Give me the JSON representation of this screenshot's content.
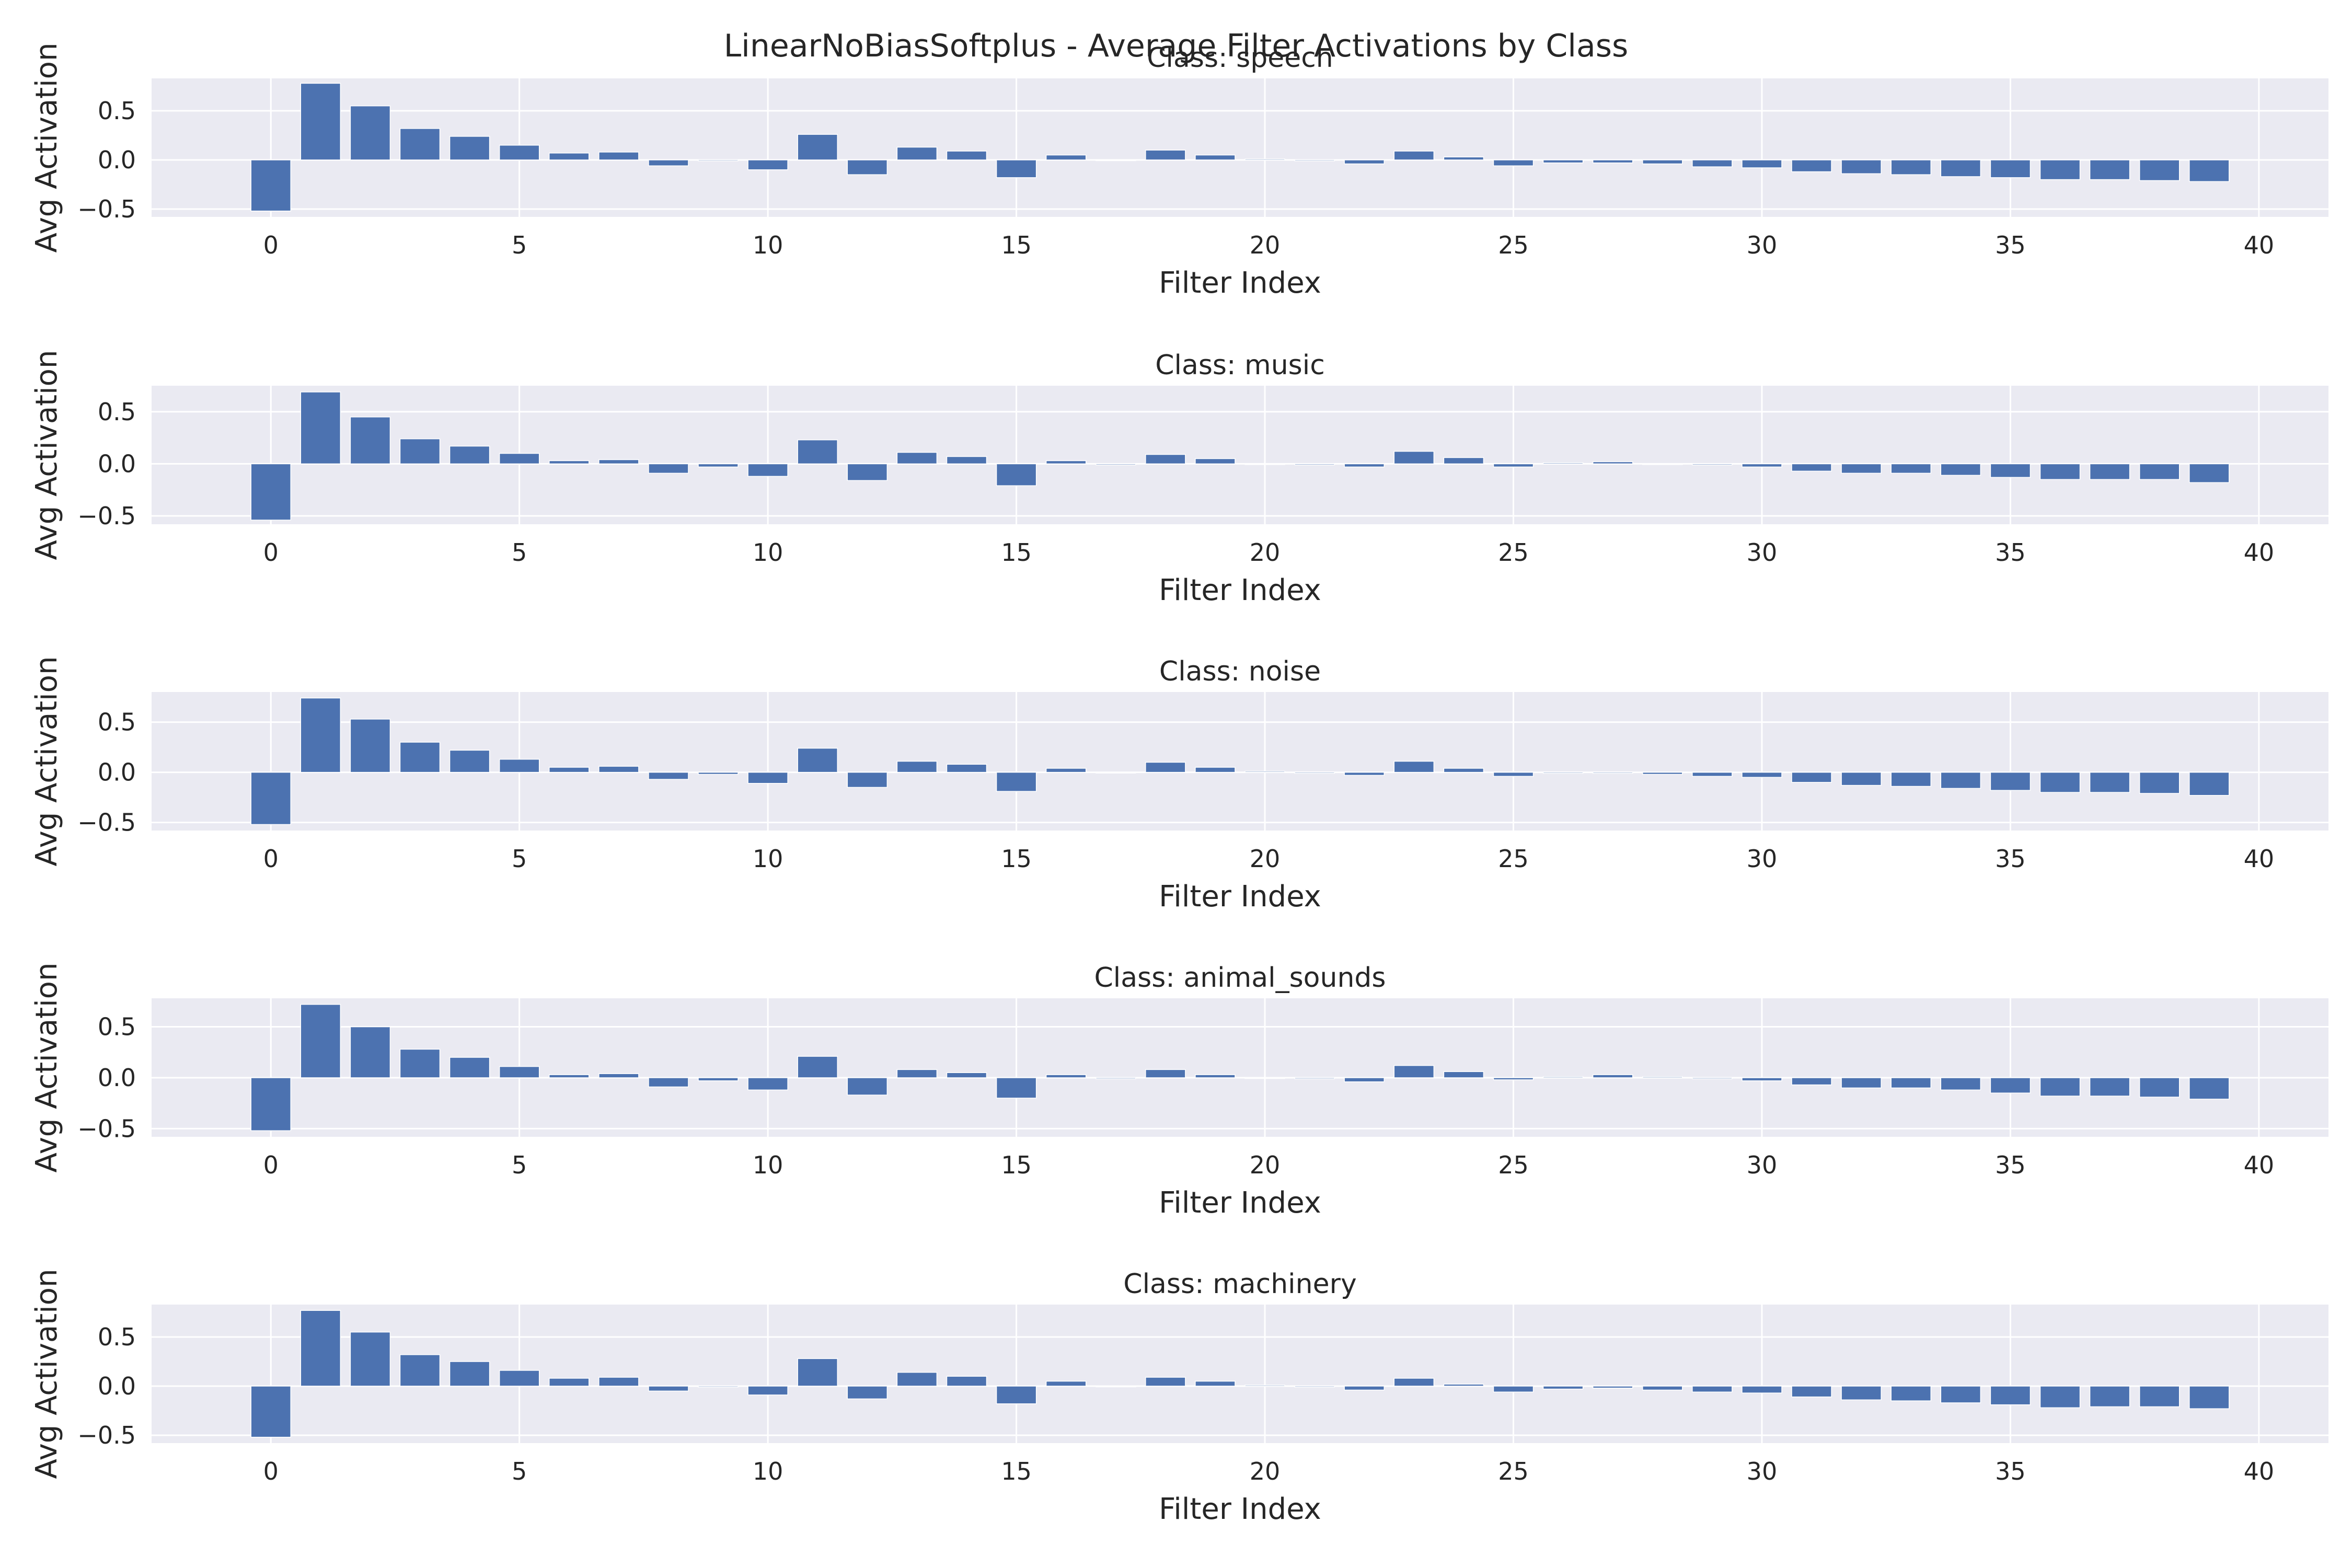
{
  "figure_title": "LinearNoBiasSoftplus - Average Filter Activations by Class",
  "colors": {
    "bar": "#4c72b0",
    "panel_bg": "#eaeaf2",
    "grid": "#ffffff",
    "text": "#262626"
  },
  "chart_data": [
    {
      "type": "bar",
      "title": "Class: speech",
      "xlabel": "Filter Index",
      "ylabel": "Avg Activation",
      "xlim": [
        -2.4,
        41.4
      ],
      "ylim": [
        -0.58,
        0.83
      ],
      "xticks": [
        0,
        5,
        10,
        15,
        20,
        25,
        30,
        35,
        40
      ],
      "yticks": [
        -0.5,
        0.0,
        0.5
      ],
      "xtick_labels": [
        "0",
        "5",
        "10",
        "15",
        "20",
        "25",
        "30",
        "35",
        "40"
      ],
      "ytick_labels": [
        "−0.5",
        "0.0",
        "0.5"
      ],
      "grid": true,
      "x": [
        0,
        1,
        2,
        3,
        4,
        5,
        6,
        7,
        8,
        9,
        10,
        11,
        12,
        13,
        14,
        15,
        16,
        17,
        18,
        19,
        20,
        21,
        22,
        23,
        24,
        25,
        26,
        27,
        28,
        29,
        30,
        31,
        32,
        33,
        34,
        35,
        36,
        37,
        38,
        39
      ],
      "values": [
        -0.52,
        0.78,
        0.55,
        0.32,
        0.24,
        0.15,
        0.07,
        0.08,
        -0.06,
        -0.01,
        -0.1,
        0.26,
        -0.15,
        0.13,
        0.09,
        -0.18,
        0.05,
        0.0,
        0.1,
        0.05,
        0.01,
        -0.01,
        -0.04,
        0.09,
        0.03,
        -0.06,
        -0.03,
        -0.03,
        -0.04,
        -0.07,
        -0.08,
        -0.12,
        -0.14,
        -0.15,
        -0.17,
        -0.18,
        -0.2,
        -0.2,
        -0.21,
        -0.22
      ]
    },
    {
      "type": "bar",
      "title": "Class: music",
      "xlabel": "Filter Index",
      "ylabel": "Avg Activation",
      "xlim": [
        -2.4,
        41.4
      ],
      "ylim": [
        -0.58,
        0.75
      ],
      "xticks": [
        0,
        5,
        10,
        15,
        20,
        25,
        30,
        35,
        40
      ],
      "yticks": [
        -0.5,
        0.0,
        0.5
      ],
      "xtick_labels": [
        "0",
        "5",
        "10",
        "15",
        "20",
        "25",
        "30",
        "35",
        "40"
      ],
      "ytick_labels": [
        "−0.5",
        "0.0",
        "0.5"
      ],
      "grid": true,
      "x": [
        0,
        1,
        2,
        3,
        4,
        5,
        6,
        7,
        8,
        9,
        10,
        11,
        12,
        13,
        14,
        15,
        16,
        17,
        18,
        19,
        20,
        21,
        22,
        23,
        24,
        25,
        26,
        27,
        28,
        29,
        30,
        31,
        32,
        33,
        34,
        35,
        36,
        37,
        38,
        39
      ],
      "values": [
        -0.54,
        0.69,
        0.45,
        0.24,
        0.17,
        0.1,
        0.03,
        0.04,
        -0.09,
        -0.03,
        -0.12,
        0.23,
        -0.16,
        0.11,
        0.07,
        -0.21,
        0.03,
        -0.01,
        0.09,
        0.05,
        0.0,
        -0.01,
        -0.03,
        0.12,
        0.06,
        -0.03,
        0.01,
        0.02,
        0.0,
        -0.01,
        -0.03,
        -0.07,
        -0.09,
        -0.09,
        -0.11,
        -0.13,
        -0.15,
        -0.15,
        -0.15,
        -0.18
      ]
    },
    {
      "type": "bar",
      "title": "Class: noise",
      "xlabel": "Filter Index",
      "ylabel": "Avg Activation",
      "xlim": [
        -2.4,
        41.4
      ],
      "ylim": [
        -0.58,
        0.8
      ],
      "xticks": [
        0,
        5,
        10,
        15,
        20,
        25,
        30,
        35,
        40
      ],
      "yticks": [
        -0.5,
        0.0,
        0.5
      ],
      "xtick_labels": [
        "0",
        "5",
        "10",
        "15",
        "20",
        "25",
        "30",
        "35",
        "40"
      ],
      "ytick_labels": [
        "−0.5",
        "0.0",
        "0.5"
      ],
      "grid": true,
      "x": [
        0,
        1,
        2,
        3,
        4,
        5,
        6,
        7,
        8,
        9,
        10,
        11,
        12,
        13,
        14,
        15,
        16,
        17,
        18,
        19,
        20,
        21,
        22,
        23,
        24,
        25,
        26,
        27,
        28,
        29,
        30,
        31,
        32,
        33,
        34,
        35,
        36,
        37,
        38,
        39
      ],
      "values": [
        -0.52,
        0.74,
        0.53,
        0.3,
        0.22,
        0.13,
        0.05,
        0.06,
        -0.07,
        -0.02,
        -0.11,
        0.24,
        -0.15,
        0.11,
        0.08,
        -0.19,
        0.04,
        0.0,
        0.1,
        0.05,
        0.01,
        -0.01,
        -0.03,
        0.11,
        0.04,
        -0.04,
        -0.01,
        -0.01,
        -0.02,
        -0.04,
        -0.05,
        -0.1,
        -0.13,
        -0.14,
        -0.16,
        -0.18,
        -0.2,
        -0.2,
        -0.21,
        -0.23
      ]
    },
    {
      "type": "bar",
      "title": "Class: animal_sounds",
      "xlabel": "Filter Index",
      "ylabel": "Avg Activation",
      "xlim": [
        -2.4,
        41.4
      ],
      "ylim": [
        -0.58,
        0.78
      ],
      "xticks": [
        0,
        5,
        10,
        15,
        20,
        25,
        30,
        35,
        40
      ],
      "yticks": [
        -0.5,
        0.0,
        0.5
      ],
      "xtick_labels": [
        "0",
        "5",
        "10",
        "15",
        "20",
        "25",
        "30",
        "35",
        "40"
      ],
      "ytick_labels": [
        "−0.5",
        "0.0",
        "0.5"
      ],
      "grid": true,
      "x": [
        0,
        1,
        2,
        3,
        4,
        5,
        6,
        7,
        8,
        9,
        10,
        11,
        12,
        13,
        14,
        15,
        16,
        17,
        18,
        19,
        20,
        21,
        22,
        23,
        24,
        25,
        26,
        27,
        28,
        29,
        30,
        31,
        32,
        33,
        34,
        35,
        36,
        37,
        38,
        39
      ],
      "values": [
        -0.52,
        0.72,
        0.5,
        0.28,
        0.2,
        0.11,
        0.03,
        0.04,
        -0.09,
        -0.03,
        -0.12,
        0.21,
        -0.17,
        0.08,
        0.05,
        -0.2,
        0.03,
        -0.01,
        0.08,
        0.03,
        0.0,
        -0.01,
        -0.04,
        0.12,
        0.06,
        -0.02,
        0.01,
        0.03,
        0.01,
        -0.01,
        -0.03,
        -0.07,
        -0.1,
        -0.1,
        -0.12,
        -0.15,
        -0.18,
        -0.18,
        -0.19,
        -0.21
      ]
    },
    {
      "type": "bar",
      "title": "Class: machinery",
      "xlabel": "Filter Index",
      "ylabel": "Avg Activation",
      "xlim": [
        -2.4,
        41.4
      ],
      "ylim": [
        -0.58,
        0.83
      ],
      "xticks": [
        0,
        5,
        10,
        15,
        20,
        25,
        30,
        35,
        40
      ],
      "yticks": [
        -0.5,
        0.0,
        0.5
      ],
      "xtick_labels": [
        "0",
        "5",
        "10",
        "15",
        "20",
        "25",
        "30",
        "35",
        "40"
      ],
      "ytick_labels": [
        "−0.5",
        "0.0",
        "0.5"
      ],
      "grid": true,
      "x": [
        0,
        1,
        2,
        3,
        4,
        5,
        6,
        7,
        8,
        9,
        10,
        11,
        12,
        13,
        14,
        15,
        16,
        17,
        18,
        19,
        20,
        21,
        22,
        23,
        24,
        25,
        26,
        27,
        28,
        29,
        30,
        31,
        32,
        33,
        34,
        35,
        36,
        37,
        38,
        39
      ],
      "values": [
        -0.52,
        0.77,
        0.55,
        0.32,
        0.25,
        0.16,
        0.08,
        0.09,
        -0.05,
        -0.01,
        -0.09,
        0.28,
        -0.13,
        0.14,
        0.1,
        -0.18,
        0.05,
        0.0,
        0.09,
        0.05,
        0.01,
        -0.01,
        -0.04,
        0.08,
        0.02,
        -0.06,
        -0.03,
        -0.02,
        -0.04,
        -0.06,
        -0.07,
        -0.11,
        -0.14,
        -0.15,
        -0.17,
        -0.19,
        -0.22,
        -0.21,
        -0.21,
        -0.23
      ]
    }
  ]
}
